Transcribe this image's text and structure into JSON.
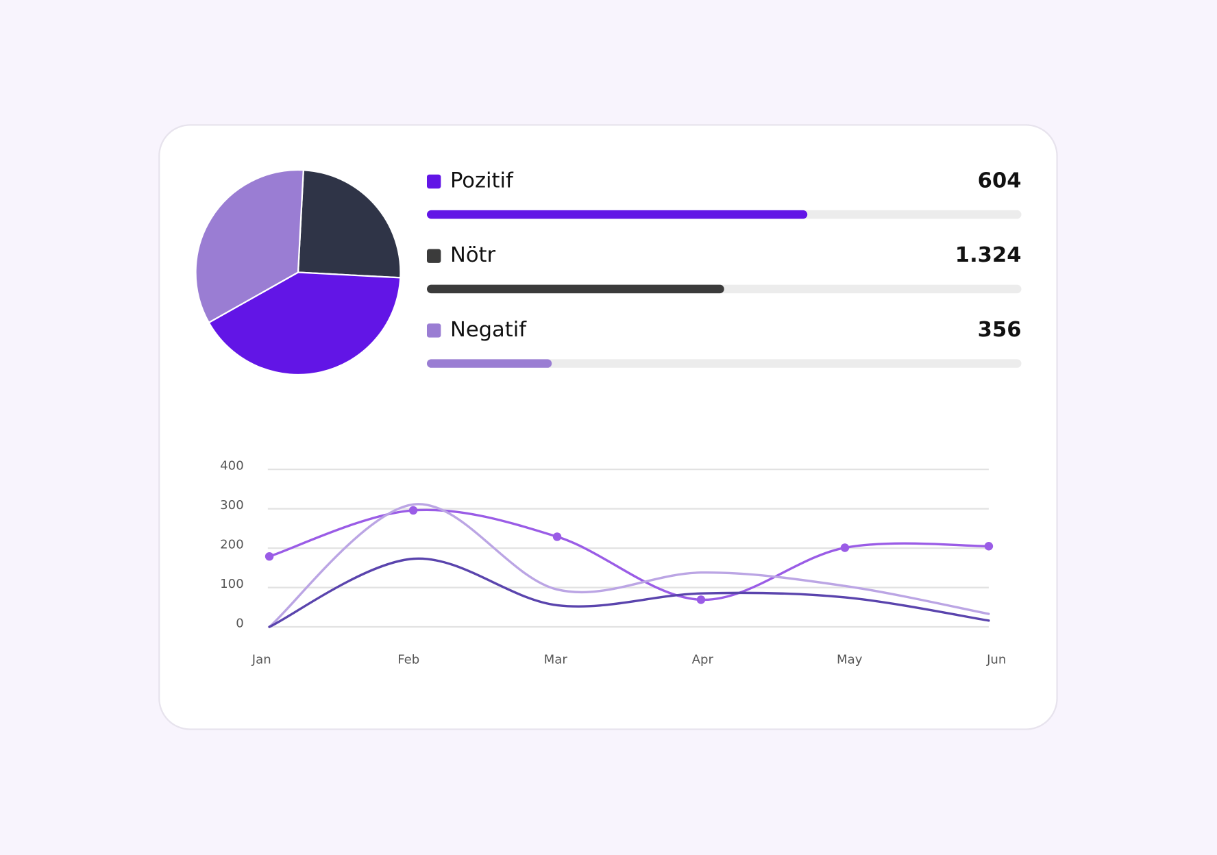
{
  "chart_data": [
    {
      "type": "pie",
      "values": [
        25,
        41,
        34
      ],
      "colors": [
        "#2f3447",
        "#6215e6",
        "#9a7dd3"
      ]
    },
    {
      "type": "progress",
      "categories": [
        "Pozitif",
        "Nötr",
        "Negatif"
      ],
      "colors": [
        "#6215e6",
        "#3b3b3b",
        "#9a7dd3"
      ],
      "values": [
        64,
        50,
        21
      ],
      "xlim": [
        0,
        100
      ],
      "totals": [
        604,
        1324,
        356
      ],
      "total_labels": [
        "604",
        "1.324",
        "356"
      ]
    },
    {
      "type": "line",
      "categories": [
        "Jan",
        "Feb",
        "Mar",
        "Apr",
        "May",
        "Jun"
      ],
      "ylim": [
        0,
        400
      ],
      "yticks": [
        0,
        100,
        200,
        300,
        400
      ],
      "grid": true,
      "series": [
        {
          "color": "#9a5ce6",
          "markers": true,
          "values": [
            179,
            296,
            229,
            69,
            201,
            205
          ]
        },
        {
          "color": "#bba5e4",
          "markers": false,
          "values": [
            0,
            311,
            95,
            138,
            104,
            33
          ]
        },
        {
          "color": "#5a44ad",
          "markers": false,
          "values": [
            0,
            173,
            55,
            85,
            75,
            16
          ]
        }
      ]
    }
  ]
}
